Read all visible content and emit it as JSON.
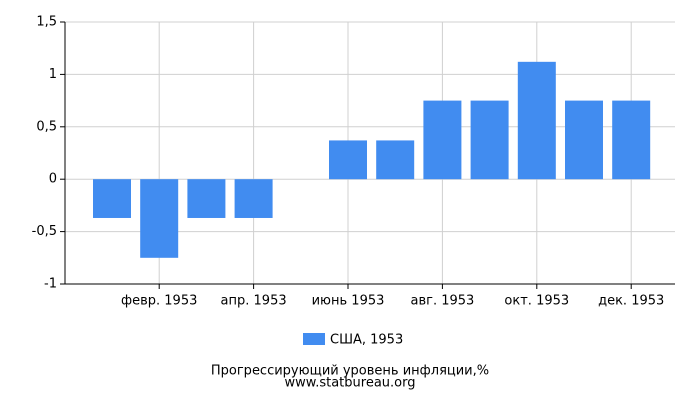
{
  "chart_data": {
    "type": "bar",
    "title": "Прогрессирующий уровень инфляции,%",
    "subtitle": "www.statbureau.org",
    "categories": [
      null,
      "февр. 1953",
      null,
      "апр. 1953",
      null,
      "июнь 1953",
      null,
      "авг. 1953",
      null,
      "окт. 1953",
      null,
      "дек. 1953"
    ],
    "series": [
      {
        "name": "США, 1953",
        "color": "#418cf0",
        "values": [
          -0.37,
          -0.75,
          -0.37,
          -0.37,
          0,
          0.37,
          0.37,
          0.75,
          0.75,
          1.12,
          0.75,
          0.75
        ]
      }
    ],
    "ylim": [
      -1,
      1.5
    ],
    "yticks": [
      {
        "value": -1,
        "label": "-1"
      },
      {
        "value": -0.5,
        "label": "-0,5"
      },
      0,
      {
        "value": 0.5,
        "label": "0,5"
      },
      1,
      {
        "value": 1.5,
        "label": "1,5"
      }
    ],
    "grid": true
  }
}
